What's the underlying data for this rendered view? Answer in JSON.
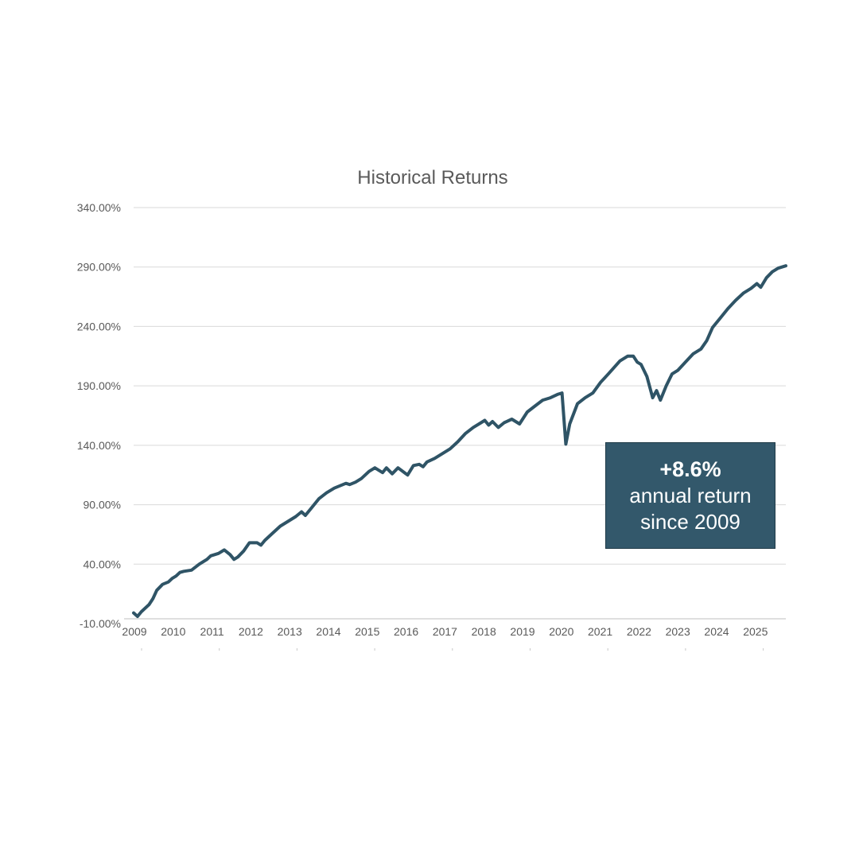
{
  "chart_data": {
    "type": "line",
    "title": "Historical Returns",
    "xlabel": "",
    "ylabel": "",
    "ylim": [
      -10,
      340
    ],
    "yticks": [
      "340.00%",
      "290.00%",
      "240.00%",
      "190.00%",
      "140.00%",
      "90.00%",
      "40.00%",
      "-10.00%"
    ],
    "ytick_values": [
      340,
      290,
      240,
      190,
      140,
      90,
      40,
      -10
    ],
    "xticks": [
      "2009",
      "2010",
      "2011",
      "2012",
      "2013",
      "2014",
      "2015",
      "2016",
      "2017",
      "2018",
      "2019",
      "2020",
      "2021",
      "2022",
      "2023",
      "2024",
      "2025"
    ],
    "xlim": [
      2009,
      2025.9
    ],
    "grid": true,
    "line_color": "#2f5466",
    "series": [
      {
        "x": [
          2009.0,
          2009.1,
          2009.2,
          2009.4,
          2009.5,
          2009.6,
          2009.75,
          2009.9,
          2010.0,
          2010.1,
          2010.2,
          2010.3,
          2010.5,
          2010.7,
          2010.9,
          2011.0,
          2011.2,
          2011.35,
          2011.5,
          2011.6,
          2011.7,
          2011.85,
          2012.0,
          2012.2,
          2012.3,
          2012.4,
          2012.6,
          2012.8,
          2013.0,
          2013.2,
          2013.35,
          2013.45,
          2013.6,
          2013.8,
          2014.0,
          2014.2,
          2014.35,
          2014.5,
          2014.6,
          2014.75,
          2014.9,
          2015.1,
          2015.25,
          2015.45,
          2015.55,
          2015.7,
          2015.85,
          2016.1,
          2016.25,
          2016.4,
          2016.5,
          2016.6,
          2016.8,
          2017.0,
          2017.2,
          2017.4,
          2017.6,
          2017.8,
          2018.0,
          2018.1,
          2018.2,
          2018.3,
          2018.45,
          2018.6,
          2018.8,
          2019.0,
          2019.2,
          2019.4,
          2019.6,
          2019.8,
          2020.0,
          2020.1,
          2020.2,
          2020.3,
          2020.5,
          2020.7,
          2020.9,
          2021.1,
          2021.3,
          2021.6,
          2021.8,
          2021.95,
          2022.05,
          2022.15,
          2022.3,
          2022.45,
          2022.55,
          2022.65,
          2022.8,
          2022.95,
          2023.1,
          2023.3,
          2023.5,
          2023.7,
          2023.85,
          2024.0,
          2024.2,
          2024.4,
          2024.6,
          2024.8,
          2025.0,
          2025.15,
          2025.25,
          2025.4,
          2025.55,
          2025.7,
          2025.9
        ],
        "y": [
          -1,
          -4,
          0,
          6,
          11,
          18,
          23,
          25,
          28,
          30,
          33,
          34,
          35,
          40,
          44,
          47,
          49,
          52,
          48,
          44,
          46,
          51,
          58,
          58,
          56,
          60,
          66,
          72,
          76,
          80,
          84,
          81,
          87,
          95,
          100,
          104,
          106,
          108,
          107,
          109,
          112,
          118,
          121,
          117,
          121,
          116,
          121,
          115,
          123,
          124,
          122,
          126,
          129,
          133,
          137,
          143,
          150,
          155,
          159,
          161,
          157,
          160,
          155,
          159,
          162,
          158,
          168,
          173,
          178,
          180,
          183,
          184,
          141,
          158,
          175,
          180,
          184,
          193,
          200,
          211,
          215,
          215,
          210,
          208,
          198,
          180,
          186,
          178,
          190,
          200,
          203,
          210,
          217,
          221,
          228,
          239,
          247,
          255,
          262,
          268,
          272,
          276,
          273,
          281,
          286,
          289,
          291
        ]
      }
    ],
    "annotation": {
      "highlight": "+8.6%",
      "line1": "annual return",
      "line2": "since 2009",
      "background": "#33586b"
    }
  }
}
